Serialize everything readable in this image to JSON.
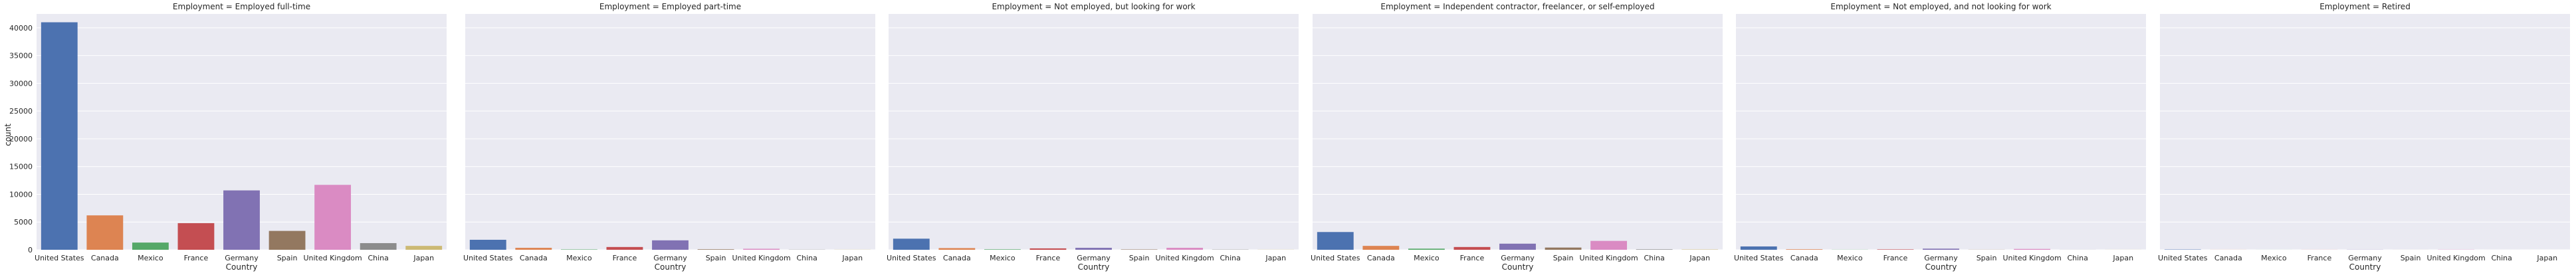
{
  "chart_data": {
    "type": "bar",
    "facet_variable": "Employment",
    "xlabel": "Country",
    "ylabel": "count",
    "ylim": [
      0,
      42500
    ],
    "yticks": [
      0,
      5000,
      10000,
      15000,
      20000,
      25000,
      30000,
      35000,
      40000
    ],
    "grid": true,
    "categories": [
      "United States",
      "Canada",
      "Mexico",
      "France",
      "Germany",
      "Spain",
      "United Kingdom",
      "China",
      "Japan"
    ],
    "colors": [
      "#4c72b0",
      "#dd8452",
      "#55a868",
      "#c44e52",
      "#8172b3",
      "#937860",
      "#da8bc3",
      "#8c8c8c",
      "#ccb974"
    ],
    "facets": [
      {
        "title": "Employment = Employed full-time",
        "values": [
          41000,
          6200,
          1300,
          4800,
          10700,
          3400,
          11700,
          1200,
          700
        ]
      },
      {
        "title": "Employment = Employed part-time",
        "values": [
          1800,
          350,
          60,
          500,
          1700,
          90,
          180,
          30,
          20
        ]
      },
      {
        "title": "Employment = Not employed, but looking for work",
        "values": [
          2000,
          300,
          80,
          250,
          350,
          60,
          350,
          40,
          20
        ]
      },
      {
        "title": "Employment = Independent contractor, freelancer, or self-employed",
        "values": [
          3200,
          700,
          200,
          500,
          1100,
          400,
          1600,
          80,
          50
        ]
      },
      {
        "title": "Employment = Not employed, and not looking for work",
        "values": [
          600,
          90,
          20,
          70,
          200,
          20,
          150,
          10,
          10
        ]
      },
      {
        "title": "Employment = Retired",
        "values": [
          50,
          10,
          5,
          10,
          20,
          5,
          30,
          2,
          2
        ]
      }
    ]
  }
}
